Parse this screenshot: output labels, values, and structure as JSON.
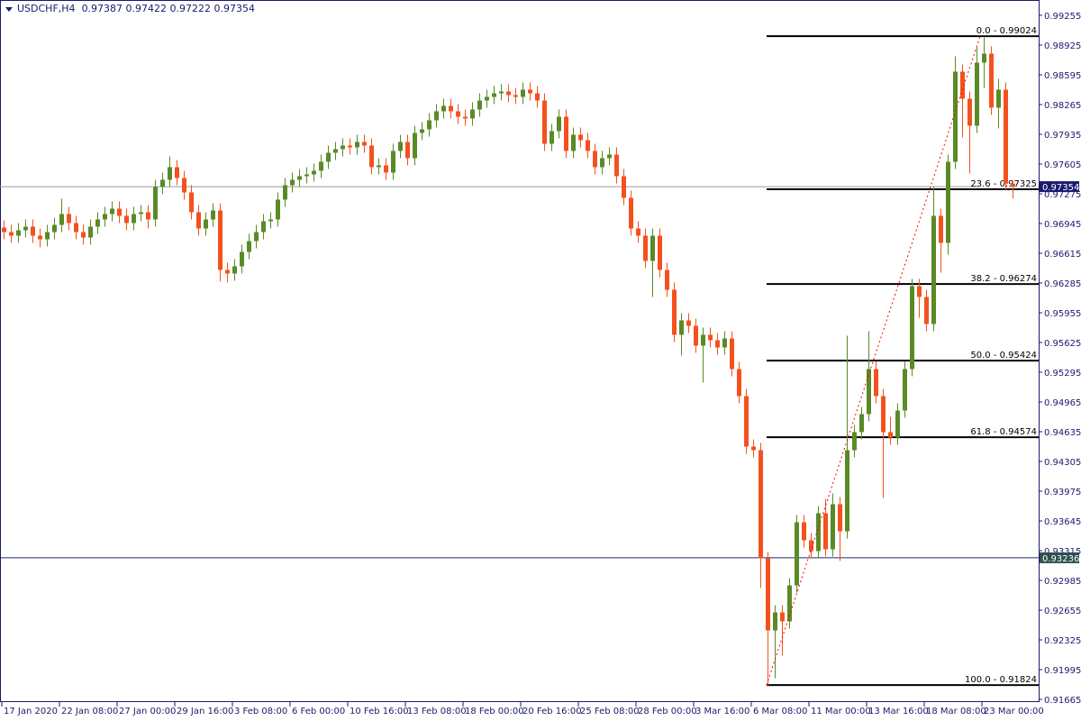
{
  "header": {
    "symbol": "USDCHF,H4",
    "ohlc": "0.97387 0.97422 0.97222 0.97354"
  },
  "chart_data": {
    "type": "candlestick",
    "symbol": "USDCHF",
    "timeframe": "H4",
    "ylim": [
      0.91665,
      0.99255
    ],
    "y_ticks": [
      "0.99255",
      "0.98925",
      "0.98595",
      "0.98265",
      "0.97935",
      "0.97605",
      "0.97275",
      "0.96945",
      "0.96615",
      "0.96285",
      "0.95955",
      "0.95625",
      "0.95295",
      "0.94965",
      "0.94635",
      "0.94305",
      "0.93975",
      "0.93645",
      "0.93315",
      "0.92985",
      "0.92655",
      "0.92325",
      "0.91995",
      "0.91665"
    ],
    "x_ticks": [
      "17 Jan 2020",
      "22 Jan 08:00",
      "27 Jan 00:00",
      "29 Jan 16:00",
      "3 Feb 08:00",
      "6 Feb 00:00",
      "10 Feb 16:00",
      "13 Feb 08:00",
      "18 Feb 00:00",
      "20 Feb 16:00",
      "25 Feb 08:00",
      "28 Feb 00:00",
      "3 Mar 16:00",
      "6 Mar 08:00",
      "11 Mar 00:00",
      "13 Mar 16:00",
      "18 Mar 08:00",
      "23 Mar 00:00"
    ],
    "colors": {
      "bull": "#5a8a26",
      "bear": "#f4511e",
      "axis": "#1a1a6e",
      "fib": "#000000",
      "trend": "#ff0000",
      "bid_line": "#9a9aa8",
      "bid_label": "#1a1a6e",
      "hline": "#1a2a6e",
      "hline_label": "#2f4f4f"
    },
    "bid": {
      "value": "0.97354"
    },
    "hline": {
      "value": "0.93236"
    },
    "fibonacci": [
      {
        "label": "0.0 - 0.99024",
        "price": 0.99024
      },
      {
        "label": "23.6 - 0.97325",
        "price": 0.97325
      },
      {
        "label": "38.2 - 0.96274",
        "price": 0.96274
      },
      {
        "label": "50.0 - 0.95424",
        "price": 0.95424
      },
      {
        "label": "61.8 - 0.94574",
        "price": 0.94574
      },
      {
        "label": "100.0 - 0.91824",
        "price": 0.91824
      }
    ],
    "o": [
      0.969,
      0.9685,
      0.9681,
      0.9687,
      0.9691,
      0.9681,
      0.9677,
      0.9685,
      0.9693,
      0.9705,
      0.9695,
      0.9685,
      0.9679,
      0.9691,
      0.9699,
      0.9705,
      0.9711,
      0.9703,
      0.9695,
      0.9705,
      0.9707,
      0.9699,
      0.9735,
      0.9743,
      0.9757,
      0.9745,
      0.9729,
      0.9707,
      0.9689,
      0.9699,
      0.9709,
      0.9643,
      0.9639,
      0.9647,
      0.9663,
      0.9675,
      0.9685,
      0.9697,
      0.9699,
      0.9721,
      0.9737,
      0.9743,
      0.9747,
      0.9749,
      0.9753,
      0.9763,
      0.9773,
      0.9777,
      0.9781,
      0.9779,
      0.9785,
      0.9781,
      0.9757,
      0.9759,
      0.9751,
      0.9775,
      0.9785,
      0.9767,
      0.9795,
      0.9799,
      0.9809,
      0.9819,
      0.9825,
      0.9819,
      0.9813,
      0.9811,
      0.9821,
      0.9831,
      0.9835,
      0.9839,
      0.9841,
      0.9837,
      0.9835,
      0.9843,
      0.9839,
      0.9831,
      0.9783,
      0.9797,
      0.9813,
      0.9775,
      0.9793,
      0.9787,
      0.9775,
      0.9757,
      0.9767,
      0.9771,
      0.9747,
      0.9723,
      0.9689,
      0.9681,
      0.9653,
      0.9681,
      0.9643,
      0.9621,
      0.9571,
      0.9587,
      0.9581,
      0.9559,
      0.9571,
      0.9565,
      0.9557,
      0.9567,
      0.9533,
      0.9503,
      0.9447,
      0.9443,
      0.9323,
      0.9243,
      0.9263,
      0.9253,
      0.9293,
      0.9363,
      0.9343,
      0.9331,
      0.9373,
      0.9333,
      0.9383,
      0.9353,
      0.9443,
      0.9463,
      0.9483,
      0.9533,
      0.9503,
      0.9463,
      0.9457,
      0.9487,
      0.9533,
      0.9625,
      0.9613,
      0.9583,
      0.9703,
      0.9673,
      0.9763,
      0.9863,
      0.9833,
      0.9803,
      0.9873,
      0.9883,
      0.9823,
      0.9843,
      0.97387
    ],
    "h": [
      0.9698,
      0.9693,
      0.9695,
      0.9699,
      0.9699,
      0.9689,
      0.9693,
      0.9701,
      0.9722,
      0.9713,
      0.9703,
      0.9693,
      0.9699,
      0.9707,
      0.9713,
      0.9719,
      0.9719,
      0.9711,
      0.9713,
      0.9715,
      0.9715,
      0.9743,
      0.9751,
      0.9769,
      0.9765,
      0.9753,
      0.9737,
      0.9715,
      0.9707,
      0.9717,
      0.9717,
      0.9651,
      0.9655,
      0.9671,
      0.9683,
      0.9693,
      0.9705,
      0.9707,
      0.9729,
      0.9745,
      0.9751,
      0.9755,
      0.9757,
      0.9761,
      0.9771,
      0.9781,
      0.9785,
      0.9789,
      0.9789,
      0.9793,
      0.9793,
      0.9789,
      0.9767,
      0.9767,
      0.9783,
      0.9793,
      0.9793,
      0.9803,
      0.9807,
      0.9817,
      0.9827,
      0.9833,
      0.9833,
      0.9827,
      0.9821,
      0.9829,
      0.9839,
      0.9843,
      0.9847,
      0.9849,
      0.9849,
      0.9845,
      0.9851,
      0.9851,
      0.9847,
      0.9839,
      0.9805,
      0.9821,
      0.9821,
      0.9801,
      0.9801,
      0.9795,
      0.9783,
      0.9775,
      0.9779,
      0.9779,
      0.9755,
      0.9731,
      0.9697,
      0.9689,
      0.9689,
      0.9689,
      0.9651,
      0.9629,
      0.9595,
      0.9595,
      0.9589,
      0.9579,
      0.9579,
      0.9573,
      0.9575,
      0.9575,
      0.9541,
      0.9511,
      0.9455,
      0.9451,
      0.933,
      0.9271,
      0.9271,
      0.9301,
      0.9371,
      0.9371,
      0.9351,
      0.9381,
      0.9389,
      0.9395,
      0.9391,
      0.957,
      0.9471,
      0.9491,
      0.9575,
      0.9541,
      0.9511,
      0.948,
      0.9495,
      0.9541,
      0.9633,
      0.9633,
      0.9621,
      0.9735,
      0.9711,
      0.9771,
      0.988,
      0.9871,
      0.9841,
      0.989,
      0.9902,
      0.9891,
      0.9855,
      0.9851,
      0.97422
    ],
    "l": [
      0.9677,
      0.9673,
      0.9673,
      0.9679,
      0.9673,
      0.9668,
      0.9669,
      0.9677,
      0.9685,
      0.9687,
      0.9677,
      0.9671,
      0.9671,
      0.9683,
      0.9691,
      0.9697,
      0.9695,
      0.9687,
      0.9687,
      0.9697,
      0.9689,
      0.9691,
      0.9727,
      0.9735,
      0.9737,
      0.9721,
      0.9699,
      0.9681,
      0.9681,
      0.9691,
      0.963,
      0.9629,
      0.9631,
      0.9639,
      0.9655,
      0.9667,
      0.9677,
      0.9689,
      0.9691,
      0.9713,
      0.9729,
      0.9735,
      0.9739,
      0.9741,
      0.9745,
      0.9755,
      0.9765,
      0.9769,
      0.9771,
      0.9771,
      0.9773,
      0.9749,
      0.9749,
      0.9743,
      0.9743,
      0.9767,
      0.9759,
      0.9759,
      0.9787,
      0.9791,
      0.9801,
      0.9811,
      0.9811,
      0.9805,
      0.9803,
      0.9803,
      0.9813,
      0.9823,
      0.9827,
      0.9831,
      0.9829,
      0.9827,
      0.9827,
      0.9831,
      0.9823,
      0.9775,
      0.9775,
      0.9789,
      0.9767,
      0.9767,
      0.9779,
      0.9767,
      0.9749,
      0.9749,
      0.9759,
      0.9739,
      0.9715,
      0.9681,
      0.9673,
      0.9645,
      0.9613,
      0.9635,
      0.9613,
      0.9563,
      0.9548,
      0.9573,
      0.9551,
      0.9518,
      0.9557,
      0.9549,
      0.9549,
      0.9525,
      0.9495,
      0.9439,
      0.9435,
      0.929,
      0.9182,
      0.919,
      0.9215,
      0.9245,
      0.9285,
      0.9335,
      0.9323,
      0.9323,
      0.9325,
      0.9325,
      0.932,
      0.9345,
      0.9435,
      0.9455,
      0.9475,
      0.9495,
      0.939,
      0.9449,
      0.9449,
      0.9479,
      0.9525,
      0.959,
      0.9575,
      0.9575,
      0.964,
      0.966,
      0.9755,
      0.979,
      0.975,
      0.9795,
      0.9845,
      0.9815,
      0.98,
      0.9731,
      0.97222
    ],
    "c": [
      0.9685,
      0.9681,
      0.9687,
      0.9691,
      0.9681,
      0.9677,
      0.9685,
      0.9693,
      0.9705,
      0.9695,
      0.9685,
      0.9679,
      0.9691,
      0.9699,
      0.9705,
      0.9711,
      0.9703,
      0.9695,
      0.9705,
      0.9707,
      0.9699,
      0.9735,
      0.9743,
      0.9757,
      0.9745,
      0.9729,
      0.9707,
      0.9689,
      0.9699,
      0.9709,
      0.9643,
      0.9639,
      0.9647,
      0.9663,
      0.9675,
      0.9685,
      0.9697,
      0.9699,
      0.9721,
      0.9737,
      0.9743,
      0.9747,
      0.9749,
      0.9753,
      0.9763,
      0.9773,
      0.9777,
      0.9781,
      0.9779,
      0.9785,
      0.9781,
      0.9757,
      0.9759,
      0.9751,
      0.9775,
      0.9785,
      0.9767,
      0.9795,
      0.9799,
      0.9809,
      0.9819,
      0.9825,
      0.9819,
      0.9813,
      0.9811,
      0.9821,
      0.9831,
      0.9835,
      0.9839,
      0.9841,
      0.9837,
      0.9835,
      0.9843,
      0.9839,
      0.9831,
      0.9783,
      0.9797,
      0.9813,
      0.9775,
      0.9793,
      0.9787,
      0.9775,
      0.9757,
      0.9767,
      0.9771,
      0.9747,
      0.9723,
      0.9689,
      0.9681,
      0.9653,
      0.9681,
      0.9643,
      0.9621,
      0.9571,
      0.9587,
      0.9581,
      0.9559,
      0.9571,
      0.9565,
      0.9557,
      0.9567,
      0.9533,
      0.9503,
      0.9447,
      0.9443,
      0.9323,
      0.9243,
      0.9263,
      0.9253,
      0.9293,
      0.9363,
      0.9343,
      0.9331,
      0.9373,
      0.9333,
      0.9383,
      0.9353,
      0.9443,
      0.9463,
      0.9483,
      0.9533,
      0.9503,
      0.9463,
      0.9457,
      0.9487,
      0.9533,
      0.9625,
      0.9613,
      0.9583,
      0.9703,
      0.9673,
      0.9763,
      0.9863,
      0.9833,
      0.9803,
      0.9873,
      0.9883,
      0.9823,
      0.9843,
      0.97387,
      0.97354
    ]
  }
}
